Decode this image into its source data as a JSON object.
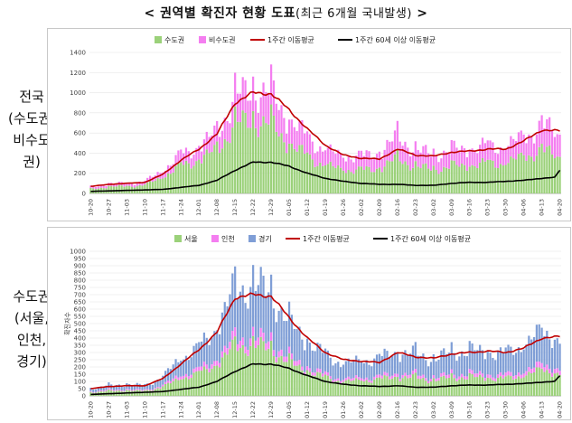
{
  "title": {
    "main": "< 권역별 확진자 현황 도표",
    "sub": "(최근 6개월 국내발생)",
    "close": " >"
  },
  "left_labels": [
    [
      "전국",
      "(수도권,",
      "비수도",
      "권)"
    ],
    [
      "수도권",
      "(서울,",
      "인천,",
      "경기)"
    ]
  ],
  "chart_data": [
    {
      "type": "bar",
      "stacked": true,
      "legend": [
        "수도권",
        "비수도권",
        "1주간 이동평균",
        "1주간 60세 이상 이동평균"
      ],
      "colors": [
        "#9bd17a",
        "#f47ef0",
        "#c00000",
        "#000000"
      ],
      "ylim": [
        0,
        1400
      ],
      "yticks": [
        0,
        200,
        400,
        600,
        800,
        1000,
        1200,
        1400
      ],
      "tick_labels": [
        "10-20",
        "10-27",
        "11-03",
        "11-10",
        "11-17",
        "11-24",
        "12-01",
        "12-08",
        "12-15",
        "12-22",
        "12-29",
        "01-05",
        "01-12",
        "01-19",
        "01-26",
        "02-02",
        "02-09",
        "02-16",
        "02-23",
        "03-02",
        "03-09",
        "03-16",
        "03-23",
        "03-30",
        "04-06",
        "04-13",
        "04-20"
      ],
      "bar_total_anchors": [
        [
          0,
          60
        ],
        [
          7,
          95
        ],
        [
          14,
          100
        ],
        [
          21,
          115
        ],
        [
          28,
          230
        ],
        [
          35,
          380
        ],
        [
          42,
          460
        ],
        [
          49,
          600
        ],
        [
          56,
          950
        ],
        [
          63,
          1020
        ],
        [
          70,
          990
        ],
        [
          77,
          720
        ],
        [
          84,
          560
        ],
        [
          91,
          420
        ],
        [
          98,
          370
        ],
        [
          105,
          360
        ],
        [
          112,
          400
        ],
        [
          119,
          560
        ],
        [
          126,
          430
        ],
        [
          133,
          380
        ],
        [
          140,
          430
        ],
        [
          147,
          440
        ],
        [
          154,
          470
        ],
        [
          161,
          460
        ],
        [
          168,
          560
        ],
        [
          175,
          660
        ],
        [
          180,
          620
        ],
        [
          182,
          540
        ]
      ],
      "capital_share_anchors": [
        [
          0,
          0.7
        ],
        [
          56,
          0.72
        ],
        [
          84,
          0.66
        ],
        [
          112,
          0.62
        ],
        [
          140,
          0.62
        ],
        [
          168,
          0.65
        ],
        [
          182,
          0.62
        ]
      ],
      "moving_avg_anchors": [
        [
          0,
          70
        ],
        [
          7,
          90
        ],
        [
          14,
          100
        ],
        [
          21,
          110
        ],
        [
          28,
          190
        ],
        [
          35,
          330
        ],
        [
          42,
          440
        ],
        [
          49,
          590
        ],
        [
          56,
          900
        ],
        [
          63,
          1000
        ],
        [
          70,
          990
        ],
        [
          77,
          830
        ],
        [
          84,
          640
        ],
        [
          91,
          480
        ],
        [
          98,
          380
        ],
        [
          105,
          350
        ],
        [
          112,
          340
        ],
        [
          119,
          440
        ],
        [
          126,
          380
        ],
        [
          133,
          370
        ],
        [
          140,
          410
        ],
        [
          147,
          420
        ],
        [
          154,
          440
        ],
        [
          161,
          440
        ],
        [
          168,
          520
        ],
        [
          175,
          630
        ],
        [
          182,
          620
        ]
      ],
      "senior_avg_anchors": [
        [
          0,
          20
        ],
        [
          14,
          30
        ],
        [
          28,
          40
        ],
        [
          42,
          80
        ],
        [
          49,
          130
        ],
        [
          56,
          230
        ],
        [
          63,
          310
        ],
        [
          70,
          310
        ],
        [
          77,
          270
        ],
        [
          84,
          200
        ],
        [
          91,
          150
        ],
        [
          98,
          120
        ],
        [
          105,
          100
        ],
        [
          112,
          90
        ],
        [
          119,
          90
        ],
        [
          126,
          80
        ],
        [
          133,
          80
        ],
        [
          140,
          100
        ],
        [
          147,
          110
        ],
        [
          154,
          110
        ],
        [
          161,
          120
        ],
        [
          168,
          130
        ],
        [
          175,
          150
        ],
        [
          180,
          160
        ],
        [
          182,
          230
        ]
      ]
    },
    {
      "type": "bar",
      "stacked": true,
      "legend": [
        "서울",
        "인천",
        "경기",
        "1주간 이동평균",
        "1주간 60세 이상 이동평균"
      ],
      "colors": [
        "#9bd17a",
        "#f47ef0",
        "#7f9ed6",
        "#c00000",
        "#000000"
      ],
      "ylabel": "확진자수",
      "ylim": [
        0,
        1000
      ],
      "yticks": [
        0,
        50,
        100,
        150,
        200,
        250,
        300,
        350,
        400,
        450,
        500,
        550,
        600,
        650,
        700,
        750,
        800,
        850,
        900,
        950,
        1000
      ],
      "tick_labels": [
        "10-20",
        "10-27",
        "11-03",
        "11-10",
        "11-17",
        "11-24",
        "12-01",
        "12-08",
        "12-15",
        "12-22",
        "12-29",
        "01-05",
        "01-12",
        "01-19",
        "01-26",
        "02-02",
        "02-09",
        "02-16",
        "02-23",
        "03-02",
        "03-09",
        "03-16",
        "03-23",
        "03-30",
        "04-06",
        "04-13",
        "04-20"
      ],
      "bar_total_anchors": [
        [
          0,
          50
        ],
        [
          7,
          70
        ],
        [
          14,
          80
        ],
        [
          21,
          70
        ],
        [
          28,
          130
        ],
        [
          35,
          260
        ],
        [
          42,
          330
        ],
        [
          49,
          470
        ],
        [
          56,
          740
        ],
        [
          63,
          760
        ],
        [
          70,
          710
        ],
        [
          77,
          500
        ],
        [
          84,
          380
        ],
        [
          91,
          280
        ],
        [
          98,
          220
        ],
        [
          105,
          240
        ],
        [
          112,
          260
        ],
        [
          119,
          300
        ],
        [
          126,
          290
        ],
        [
          133,
          250
        ],
        [
          140,
          300
        ],
        [
          147,
          310
        ],
        [
          154,
          300
        ],
        [
          161,
          290
        ],
        [
          168,
          350
        ],
        [
          175,
          440
        ],
        [
          180,
          420
        ],
        [
          182,
          330
        ]
      ],
      "series_share_anchors": [
        [
          0,
          0.48,
          0.1
        ],
        [
          56,
          0.46,
          0.07
        ],
        [
          112,
          0.44,
          0.07
        ],
        [
          168,
          0.4,
          0.08
        ],
        [
          182,
          0.4,
          0.08
        ]
      ],
      "moving_avg_anchors": [
        [
          0,
          50
        ],
        [
          7,
          65
        ],
        [
          14,
          70
        ],
        [
          21,
          70
        ],
        [
          28,
          120
        ],
        [
          35,
          220
        ],
        [
          42,
          320
        ],
        [
          49,
          440
        ],
        [
          56,
          680
        ],
        [
          63,
          700
        ],
        [
          70,
          690
        ],
        [
          77,
          540
        ],
        [
          84,
          400
        ],
        [
          91,
          300
        ],
        [
          98,
          250
        ],
        [
          105,
          240
        ],
        [
          112,
          230
        ],
        [
          119,
          300
        ],
        [
          126,
          270
        ],
        [
          133,
          260
        ],
        [
          140,
          290
        ],
        [
          147,
          300
        ],
        [
          154,
          310
        ],
        [
          161,
          300
        ],
        [
          168,
          330
        ],
        [
          175,
          400
        ],
        [
          182,
          410
        ]
      ],
      "senior_avg_anchors": [
        [
          0,
          10
        ],
        [
          14,
          20
        ],
        [
          28,
          30
        ],
        [
          42,
          60
        ],
        [
          49,
          100
        ],
        [
          56,
          170
        ],
        [
          63,
          220
        ],
        [
          70,
          220
        ],
        [
          77,
          190
        ],
        [
          84,
          140
        ],
        [
          91,
          100
        ],
        [
          98,
          80
        ],
        [
          105,
          70
        ],
        [
          112,
          65
        ],
        [
          119,
          70
        ],
        [
          126,
          60
        ],
        [
          133,
          60
        ],
        [
          140,
          70
        ],
        [
          147,
          75
        ],
        [
          154,
          75
        ],
        [
          161,
          80
        ],
        [
          168,
          85
        ],
        [
          175,
          95
        ],
        [
          180,
          100
        ],
        [
          182,
          140
        ]
      ]
    }
  ]
}
